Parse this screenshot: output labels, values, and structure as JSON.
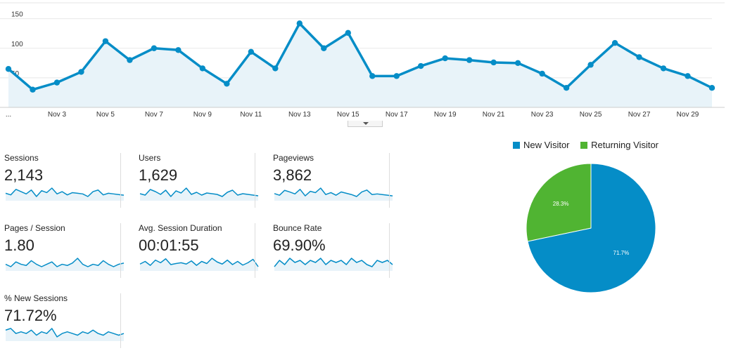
{
  "chart_data": [
    {
      "type": "area",
      "x_labels": [
        "...",
        "Nov 3",
        "Nov 5",
        "Nov 7",
        "Nov 9",
        "Nov 11",
        "Nov 13",
        "Nov 15",
        "Nov 17",
        "Nov 19",
        "Nov 21",
        "Nov 23",
        "Nov 25",
        "Nov 27",
        "Nov 29"
      ],
      "y_ticks": [
        50,
        100,
        150
      ],
      "ylim": [
        0,
        165
      ],
      "values": [
        65,
        30,
        42,
        60,
        112,
        80,
        100,
        97,
        66,
        40,
        94,
        66,
        142,
        100,
        126,
        53,
        53,
        70,
        83,
        80,
        76,
        75,
        57,
        33,
        72,
        109,
        85,
        66,
        53,
        33
      ],
      "grid": true,
      "color": "#058dc7",
      "fill": "#e8f3f9"
    },
    {
      "type": "pie",
      "slices": [
        {
          "label": "New Visitor",
          "value": 71.7,
          "display": "71.7%",
          "color": "#058dc7"
        },
        {
          "label": "Returning Visitor",
          "value": 28.3,
          "display": "28.3%",
          "color": "#50b432"
        }
      ]
    }
  ],
  "metrics": [
    {
      "label": "Sessions",
      "value": "2,143",
      "spark": [
        50,
        45,
        62,
        55,
        48,
        60,
        40,
        58,
        52,
        66,
        48,
        55,
        45,
        52,
        50,
        48,
        40,
        55,
        60,
        45,
        50,
        48,
        46,
        44
      ]
    },
    {
      "label": "Users",
      "value": "1,629",
      "spark": [
        48,
        44,
        60,
        54,
        46,
        58,
        40,
        56,
        50,
        64,
        46,
        52,
        44,
        50,
        48,
        46,
        40,
        52,
        58,
        44,
        48,
        46,
        44,
        42
      ]
    },
    {
      "label": "Pageviews",
      "value": "3,862",
      "spark": [
        45,
        40,
        55,
        50,
        44,
        58,
        38,
        52,
        48,
        62,
        42,
        48,
        40,
        50,
        46,
        42,
        36,
        50,
        56,
        42,
        44,
        42,
        40,
        38
      ]
    },
    {
      "label": "Pages / Session",
      "value": "1.80",
      "spark": [
        50,
        48,
        52,
        50,
        49,
        53,
        50,
        48,
        50,
        52,
        48,
        50,
        49,
        51,
        55,
        50,
        48,
        50,
        49,
        53,
        50,
        48,
        50,
        51
      ]
    },
    {
      "label": "Avg. Session Duration",
      "value": "00:01:55",
      "spark": [
        40,
        50,
        35,
        55,
        45,
        60,
        38,
        42,
        45,
        40,
        52,
        35,
        50,
        42,
        62,
        48,
        40,
        55,
        38,
        50,
        36,
        45,
        58,
        30
      ]
    },
    {
      "label": "Bounce Rate",
      "value": "69.90%",
      "spark": [
        52,
        55,
        53,
        56,
        54,
        55,
        53,
        55,
        54,
        56,
        53,
        55,
        54,
        55,
        53,
        56,
        54,
        55,
        53,
        52,
        55,
        54,
        55,
        53
      ]
    },
    {
      "label": "% New Sessions",
      "value": "71.72%",
      "spark": [
        52,
        53,
        50,
        51,
        50,
        52,
        49,
        51,
        50,
        53,
        48,
        50,
        51,
        50,
        49,
        51,
        50,
        52,
        50,
        49,
        51,
        50,
        49,
        50
      ]
    }
  ],
  "legend": {
    "new_visitor": "New Visitor",
    "returning_visitor": "Returning Visitor"
  }
}
